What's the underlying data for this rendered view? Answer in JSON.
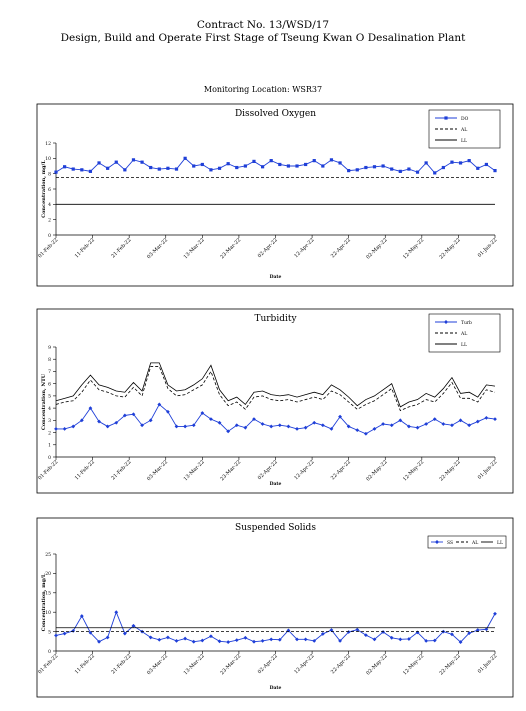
{
  "header": {
    "contract": "Contract No. 13/WSD/17",
    "project": "Design, Build and Operate First Stage of Tseung Kwan O Desalination Plant",
    "location": "Monitoring Location: WSR37"
  },
  "chart_data": [
    {
      "type": "line",
      "title": "Dissolved Oxygen",
      "ylabel": "Concentration, mg/L",
      "xlabel": "Date",
      "ylim": [
        0,
        12
      ],
      "yticks": [
        0,
        2,
        4,
        6,
        8,
        10,
        12
      ],
      "grid": false,
      "legend": "top-right",
      "xticks": [
        "01-Feb-22",
        "11-Feb-22",
        "21-Feb-22",
        "03-Mar-22",
        "13-Mar-22",
        "23-Mar-22",
        "02-Apr-22",
        "12-Apr-22",
        "22-Apr-22",
        "02-May-22",
        "12-May-22",
        "22-May-22",
        "01-Jun-22"
      ],
      "series": [
        {
          "name": "DO",
          "style": "line-square",
          "color": "#1f3fd8",
          "values": [
            8.2,
            8.9,
            8.6,
            8.5,
            8.3,
            9.4,
            8.7,
            9.5,
            8.5,
            9.8,
            9.5,
            8.8,
            8.6,
            8.7,
            8.6,
            10.0,
            9.0,
            9.2,
            8.5,
            8.7,
            9.3,
            8.8,
            9.0,
            9.6,
            8.9,
            9.7,
            9.2,
            9.0,
            9.0,
            9.2,
            9.7,
            9.0,
            9.8,
            9.4,
            8.4,
            8.5,
            8.8,
            8.9,
            9.0,
            8.6,
            8.3,
            8.6,
            8.2,
            9.4,
            8.1,
            8.8,
            9.5,
            9.4,
            9.7,
            8.7,
            9.2,
            8.4
          ]
        },
        {
          "name": "AL",
          "style": "dashed",
          "color": "#000000",
          "values": [
            7.5
          ]
        },
        {
          "name": "LL",
          "style": "solid",
          "color": "#000000",
          "values": [
            4
          ]
        }
      ]
    },
    {
      "type": "line",
      "title": "Turbidity",
      "ylabel": "Concentration, NTU",
      "xlabel": "Date",
      "ylim": [
        0,
        9
      ],
      "yticks": [
        0,
        1,
        2,
        3,
        4,
        5,
        6,
        7,
        8,
        9
      ],
      "grid": false,
      "legend": "top-right",
      "xticks": [
        "01-Feb-22",
        "11-Feb-22",
        "21-Feb-22",
        "03-Mar-22",
        "13-Mar-22",
        "23-Mar-22",
        "02-Apr-22",
        "12-Apr-22",
        "22-Apr-22",
        "02-May-22",
        "12-May-22",
        "22-May-22",
        "01-Jun-22"
      ],
      "series": [
        {
          "name": "Turb",
          "style": "line-diamond",
          "color": "#1f3fd8",
          "values": [
            2.3,
            2.3,
            2.5,
            3.0,
            4.0,
            2.9,
            2.5,
            2.8,
            3.4,
            3.5,
            2.6,
            3.0,
            4.3,
            3.7,
            2.5,
            2.5,
            2.6,
            3.6,
            3.1,
            2.8,
            2.1,
            2.6,
            2.4,
            3.1,
            2.7,
            2.5,
            2.6,
            2.5,
            2.3,
            2.4,
            2.8,
            2.6,
            2.3,
            3.3,
            2.5,
            2.2,
            1.9,
            2.3,
            2.7,
            2.6,
            3.0,
            2.5,
            2.4,
            2.7,
            3.1,
            2.7,
            2.6,
            3.0,
            2.6,
            2.9,
            3.2,
            3.1
          ]
        },
        {
          "name": "AL",
          "style": "dashed",
          "color": "#000000",
          "values": [
            4.3,
            4.5,
            4.6,
            5.3,
            6.3,
            5.5,
            5.3,
            5.0,
            4.9,
            5.7,
            5.0,
            7.4,
            7.4,
            5.6,
            5.0,
            5.1,
            5.5,
            5.9,
            7.0,
            5.1,
            4.2,
            4.5,
            3.9,
            4.9,
            5.0,
            4.7,
            4.6,
            4.7,
            4.5,
            4.7,
            4.9,
            4.7,
            5.4,
            5.1,
            4.5,
            3.9,
            4.3,
            4.6,
            5.1,
            5.6,
            3.8,
            4.1,
            4.3,
            4.7,
            4.5,
            5.2,
            6.1,
            4.8,
            4.8,
            4.5,
            5.5,
            5.3
          ]
        },
        {
          "name": "LL",
          "style": "solid",
          "color": "#000000",
          "values": [
            4.6,
            4.8,
            5.0,
            5.9,
            6.7,
            5.9,
            5.7,
            5.4,
            5.3,
            6.1,
            5.4,
            7.7,
            7.7,
            5.9,
            5.4,
            5.5,
            5.9,
            6.4,
            7.5,
            5.5,
            4.6,
            4.9,
            4.3,
            5.3,
            5.4,
            5.1,
            5.0,
            5.1,
            4.9,
            5.1,
            5.3,
            5.1,
            5.9,
            5.5,
            4.9,
            4.2,
            4.7,
            5.0,
            5.5,
            6.0,
            4.1,
            4.5,
            4.7,
            5.2,
            4.9,
            5.6,
            6.5,
            5.2,
            5.3,
            4.9,
            5.9,
            5.8
          ]
        }
      ]
    },
    {
      "type": "line",
      "title": "Suspended Solids",
      "ylabel": "Concentration, mg/L",
      "xlabel": "Date",
      "ylim": [
        0,
        25
      ],
      "yticks": [
        0,
        5,
        10,
        15,
        20,
        25
      ],
      "grid": false,
      "legend": "top",
      "xticks": [
        "01-Feb-22",
        "11-Feb-22",
        "21-Feb-22",
        "03-Mar-22",
        "13-Mar-22",
        "23-Mar-22",
        "02-Apr-22",
        "12-Apr-22",
        "22-Apr-22",
        "02-May-22",
        "12-May-22",
        "22-May-22",
        "01-Jun-22"
      ],
      "series": [
        {
          "name": "SS",
          "style": "line-diamond",
          "color": "#1f3fd8",
          "values": [
            4.0,
            4.5,
            5.2,
            9.0,
            4.7,
            2.4,
            3.5,
            10.0,
            4.5,
            6.5,
            5.0,
            3.5,
            2.9,
            3.5,
            2.6,
            3.2,
            2.4,
            2.7,
            3.8,
            2.5,
            2.3,
            2.8,
            3.4,
            2.4,
            2.6,
            3.0,
            2.9,
            5.3,
            3.0,
            3.0,
            2.6,
            4.4,
            5.4,
            2.6,
            4.9,
            5.5,
            4.1,
            3.0,
            4.9,
            3.4,
            3.0,
            3.1,
            4.8,
            2.6,
            2.7,
            5.0,
            4.3,
            2.3,
            4.6,
            5.4,
            5.6,
            9.6
          ]
        },
        {
          "name": "AL",
          "style": "dashed",
          "color": "#000000",
          "values": [
            5
          ]
        },
        {
          "name": "LL",
          "style": "solid",
          "color": "#000000",
          "values": [
            6
          ]
        }
      ]
    }
  ]
}
